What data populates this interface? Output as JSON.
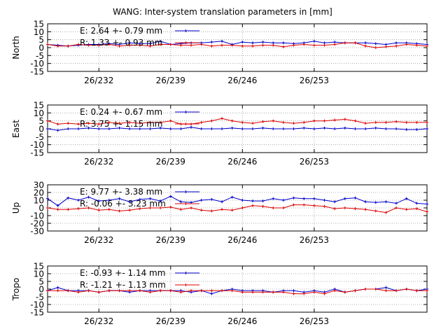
{
  "title": "WANG: Inter-system translation parameters in [mm]",
  "colors": {
    "E": "#0000cc",
    "R": "#dd0000",
    "grid": "#9a9a9a",
    "frame": "#000000"
  },
  "chart_data": [
    {
      "type": "line",
      "ylabel": "North",
      "ylim": [
        -15,
        15
      ],
      "yticks": [
        15,
        10,
        5,
        0,
        -5,
        -10,
        -15
      ],
      "xlim": [
        227,
        264
      ],
      "xticks": [
        {
          "v": 232,
          "label": "26/232"
        },
        {
          "v": 239,
          "label": "26/239"
        },
        {
          "v": 246,
          "label": "26/246"
        },
        {
          "v": 253,
          "label": "26/253"
        }
      ],
      "grid": true,
      "legend": [
        "E:   2.64 +- 0.79 mm",
        "R:   1.33 +- 0.93 mm"
      ],
      "series": [
        {
          "name": "E",
          "x": [
            227,
            228,
            229,
            230,
            231,
            232,
            233,
            234,
            235,
            236,
            237,
            238,
            239,
            240,
            241,
            242,
            243,
            244,
            245,
            246,
            247,
            248,
            249,
            250,
            251,
            252,
            253,
            254,
            255,
            256,
            257,
            258,
            259,
            260,
            261,
            262,
            263,
            264
          ],
          "y": [
            2,
            1.5,
            1,
            1.5,
            2,
            2,
            2.5,
            2,
            3,
            2.5,
            2.5,
            4,
            2,
            2.5,
            3,
            3,
            3.5,
            4,
            2,
            3.5,
            3,
            3.5,
            3,
            3,
            2.5,
            3,
            4,
            3,
            3.5,
            3,
            3,
            3,
            2.5,
            2,
            3,
            3,
            2.5,
            2
          ]
        },
        {
          "name": "R",
          "x": [
            227,
            228,
            229,
            230,
            231,
            232,
            233,
            234,
            235,
            236,
            237,
            238,
            239,
            240,
            241,
            242,
            243,
            244,
            245,
            246,
            247,
            248,
            249,
            250,
            251,
            252,
            253,
            254,
            255,
            256,
            257,
            258,
            259,
            260,
            261,
            262,
            263,
            264
          ],
          "y": [
            2,
            1,
            1,
            2,
            1.5,
            1.5,
            2,
            1,
            1.5,
            1.5,
            1,
            2,
            2,
            1.5,
            1.5,
            2,
            1,
            1.5,
            1.5,
            1,
            1,
            1.5,
            1.5,
            0.5,
            1.5,
            2,
            1.5,
            1.5,
            2,
            3,
            3,
            1,
            0,
            0.5,
            1,
            2,
            1.5,
            1
          ]
        }
      ]
    },
    {
      "type": "line",
      "ylabel": "East",
      "ylim": [
        -15,
        15
      ],
      "yticks": [
        15,
        10,
        5,
        0,
        -5,
        -10,
        -15
      ],
      "xlim": [
        227,
        264
      ],
      "xticks": [
        {
          "v": 232,
          "label": "26/232"
        },
        {
          "v": 239,
          "label": "26/239"
        },
        {
          "v": 246,
          "label": "26/246"
        },
        {
          "v": 253,
          "label": "26/253"
        }
      ],
      "grid": true,
      "legend": [
        "E:   0.24 +- 0.67 mm",
        "R:   3.75 +- 1.15 mm"
      ],
      "series": [
        {
          "name": "E",
          "x": [
            227,
            228,
            229,
            230,
            231,
            232,
            233,
            234,
            235,
            236,
            237,
            238,
            239,
            240,
            241,
            242,
            243,
            244,
            245,
            246,
            247,
            248,
            249,
            250,
            251,
            252,
            253,
            254,
            255,
            256,
            257,
            258,
            259,
            260,
            261,
            262,
            263,
            264
          ],
          "y": [
            0,
            -1,
            0,
            0,
            0.5,
            0,
            0,
            0.5,
            0,
            0,
            0,
            0.5,
            0,
            0,
            1,
            0,
            0,
            0,
            0.5,
            0,
            0,
            0.5,
            0,
            0,
            0,
            0.5,
            0,
            0.5,
            0,
            0.5,
            0,
            0,
            0.5,
            0,
            0,
            -0.5,
            -0.5,
            0
          ]
        },
        {
          "name": "R",
          "x": [
            227,
            228,
            229,
            230,
            231,
            232,
            233,
            234,
            235,
            236,
            237,
            238,
            239,
            240,
            241,
            242,
            243,
            244,
            245,
            246,
            247,
            248,
            249,
            250,
            251,
            252,
            253,
            254,
            255,
            256,
            257,
            258,
            259,
            260,
            261,
            262,
            263,
            264
          ],
          "y": [
            5,
            3,
            3.5,
            3,
            3.5,
            3,
            4,
            3.5,
            4,
            3.5,
            4,
            4,
            5,
            3,
            3,
            4,
            5,
            6.5,
            5,
            4,
            3.5,
            4.5,
            5,
            4,
            3.5,
            4,
            5,
            5,
            5.5,
            6,
            5,
            3.5,
            4,
            4,
            4.5,
            4,
            4,
            4
          ]
        }
      ]
    },
    {
      "type": "line",
      "ylabel": "Up",
      "ylim": [
        -30,
        30
      ],
      "yticks": [
        30,
        20,
        10,
        0,
        -10,
        -20,
        -30
      ],
      "xlim": [
        227,
        264
      ],
      "xticks": [
        {
          "v": 232,
          "label": "26/232"
        },
        {
          "v": 239,
          "label": "26/239"
        },
        {
          "v": 246,
          "label": "26/246"
        },
        {
          "v": 253,
          "label": "26/253"
        }
      ],
      "grid": true,
      "legend": [
        "E:   9.77 +- 3.38 mm",
        "R:  -0.06 +- 3.23 mm"
      ],
      "series": [
        {
          "name": "E",
          "x": [
            227,
            228,
            229,
            230,
            231,
            232,
            233,
            234,
            235,
            236,
            237,
            238,
            239,
            240,
            241,
            242,
            243,
            244,
            245,
            246,
            247,
            248,
            249,
            250,
            251,
            252,
            253,
            254,
            255,
            256,
            257,
            258,
            259,
            260,
            261,
            262,
            263,
            264
          ],
          "y": [
            12,
            3,
            13,
            10,
            14,
            9,
            10,
            12,
            8,
            11,
            12,
            9,
            15,
            8,
            7,
            10,
            11,
            8,
            14,
            10,
            9,
            9,
            12,
            10,
            13,
            12,
            12,
            10,
            8,
            12,
            13,
            8,
            7,
            8,
            6,
            12,
            6,
            5
          ]
        },
        {
          "name": "R",
          "x": [
            227,
            228,
            229,
            230,
            231,
            232,
            233,
            234,
            235,
            236,
            237,
            238,
            239,
            240,
            241,
            242,
            243,
            244,
            245,
            246,
            247,
            248,
            249,
            250,
            251,
            252,
            253,
            254,
            255,
            256,
            257,
            258,
            259,
            260,
            261,
            262,
            263,
            264
          ],
          "y": [
            0,
            -2,
            -2,
            -1,
            0,
            -3,
            -2,
            -4,
            -3,
            -1,
            0,
            0,
            1,
            -2,
            0,
            -3,
            -4,
            -2,
            -3,
            0,
            3,
            2,
            0,
            0,
            4,
            4,
            3,
            2,
            -1,
            0,
            -1,
            -2,
            -4,
            -6,
            0,
            -2,
            -1,
            -5
          ]
        }
      ]
    },
    {
      "type": "line",
      "ylabel": "Tropo",
      "ylim": [
        -15,
        15
      ],
      "yticks": [
        15,
        10,
        5,
        0,
        -5,
        -10,
        -15
      ],
      "xlim": [
        227,
        264
      ],
      "xticks": [
        {
          "v": 232,
          "label": "26/232"
        },
        {
          "v": 239,
          "label": "26/239"
        },
        {
          "v": 246,
          "label": "26/246"
        },
        {
          "v": 253,
          "label": "26/253"
        }
      ],
      "grid": true,
      "legend": [
        "E:  -0.93 +- 1.14 mm",
        "R:  -1.21 +- 1.13 mm"
      ],
      "series": [
        {
          "name": "E",
          "x": [
            227,
            228,
            229,
            230,
            231,
            232,
            233,
            234,
            235,
            236,
            237,
            238,
            239,
            240,
            241,
            242,
            243,
            244,
            245,
            246,
            247,
            248,
            249,
            250,
            251,
            252,
            253,
            254,
            255,
            256,
            257,
            258,
            259,
            260,
            261,
            262,
            263,
            264
          ],
          "y": [
            -1,
            1,
            -1,
            -1,
            -1,
            -2,
            -1,
            -1,
            -2,
            -1,
            -1,
            -1,
            -1,
            -1,
            -2,
            -1,
            -3,
            -1,
            0,
            -1,
            -1,
            -1,
            -2,
            -1,
            -1,
            -2,
            -1,
            -2,
            0,
            -2,
            -1,
            0,
            0,
            1,
            -1,
            0,
            -1,
            0
          ]
        },
        {
          "name": "R",
          "x": [
            227,
            228,
            229,
            230,
            231,
            232,
            233,
            234,
            235,
            236,
            237,
            238,
            239,
            240,
            241,
            242,
            243,
            244,
            245,
            246,
            247,
            248,
            249,
            250,
            251,
            252,
            253,
            254,
            255,
            256,
            257,
            258,
            259,
            260,
            261,
            262,
            263,
            264
          ],
          "y": [
            -1,
            -1,
            -1,
            -2,
            -1,
            -2,
            -1,
            -1,
            -1,
            -1,
            -2,
            -1,
            -1,
            -2,
            -1,
            -1,
            -1,
            -1,
            -1,
            -2,
            -2,
            -2,
            -2,
            -2,
            -3,
            -3,
            -2,
            -3,
            -1,
            -2,
            -1,
            0,
            0,
            -1,
            -1,
            0,
            -1,
            -1
          ]
        }
      ]
    }
  ]
}
